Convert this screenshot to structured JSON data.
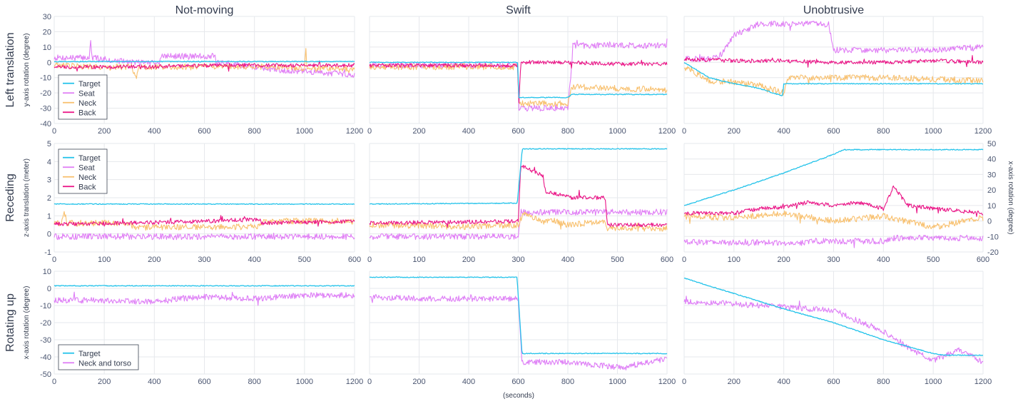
{
  "figure": {
    "column_titles": [
      "Not-moving",
      "Swift",
      "Unobtrusive"
    ],
    "row_titles": [
      "Left translation",
      "Receding",
      "Rotating up"
    ],
    "xlabel": "(seconds)",
    "colors": {
      "Target": "#25c3ea",
      "Seat": "#e07ef5",
      "Neck": "#f8c06e",
      "Back": "#ea1486",
      "Neck and torso": "#de7ef6"
    }
  },
  "chart_data": [
    {
      "type": "line",
      "row": 0,
      "col": 0,
      "column_title": "Not-moving",
      "row_title": "Left translation",
      "ylabel": "y-axis rotation (degree)",
      "xlim": [
        0,
        1200
      ],
      "ylim": [
        -40,
        30
      ],
      "xticks": [
        0,
        200,
        400,
        600,
        800,
        1000,
        1200
      ],
      "yticks": [
        -40,
        -30,
        -20,
        -10,
        0,
        10,
        20,
        30
      ],
      "legend": [
        "Target",
        "Seat",
        "Neck",
        "Back"
      ],
      "legend_position": "bottom-left",
      "series": [
        {
          "name": "Target",
          "x": [
            0,
            1200
          ],
          "y": [
            0.5,
            0.5
          ]
        },
        {
          "name": "Seat",
          "x": [
            0,
            140,
            145,
            150,
            300,
            420,
            425,
            640,
            645,
            900,
            1200
          ],
          "y": [
            3,
            3,
            15,
            3,
            0,
            0,
            4,
            4,
            0,
            -5,
            -8
          ]
        },
        {
          "name": "Neck",
          "x": [
            0,
            140,
            310,
            325,
            340,
            640,
            900,
            1000,
            1005,
            1010,
            1200
          ],
          "y": [
            -2,
            -3,
            -3,
            -11,
            -3,
            -3,
            -3,
            -4,
            10,
            -4,
            -4
          ]
        },
        {
          "name": "Back",
          "x": [
            0,
            200,
            400,
            600,
            800,
            1000,
            1200
          ],
          "y": [
            -3,
            -3,
            -3,
            -2,
            -2,
            -2,
            -2
          ]
        }
      ]
    },
    {
      "type": "line",
      "row": 0,
      "col": 1,
      "column_title": "Swift",
      "row_title": "Left translation",
      "xlim": [
        0,
        1200
      ],
      "ylim": [
        -40,
        30
      ],
      "xticks": [
        0,
        200,
        400,
        600,
        800,
        1000,
        1200
      ],
      "series": [
        {
          "name": "Target",
          "x": [
            0,
            598,
            602,
            800,
            815,
            1200
          ],
          "y": [
            0,
            0,
            -23,
            -23,
            -21,
            -21
          ]
        },
        {
          "name": "Seat",
          "x": [
            0,
            598,
            602,
            800,
            815,
            820,
            1200
          ],
          "y": [
            -2,
            -2,
            -30,
            -30,
            -2,
            11,
            11
          ]
        },
        {
          "name": "Neck",
          "x": [
            0,
            400,
            598,
            602,
            800,
            815,
            1000,
            1200
          ],
          "y": [
            -3,
            -3,
            -3,
            -27,
            -27,
            -16,
            -17,
            -18
          ]
        },
        {
          "name": "Back",
          "x": [
            0,
            598,
            602,
            610,
            800,
            1000,
            1200
          ],
          "y": [
            -2,
            -2,
            -30,
            0,
            0,
            -1,
            -1
          ]
        }
      ]
    },
    {
      "type": "line",
      "row": 0,
      "col": 2,
      "column_title": "Unobtrusive",
      "row_title": "Left translation",
      "xlim": [
        0,
        1200
      ],
      "ylim": [
        -40,
        30
      ],
      "xticks": [
        0,
        200,
        400,
        600,
        800,
        1000,
        1200
      ],
      "series": [
        {
          "name": "Target",
          "x": [
            0,
            100,
            200,
            300,
            395,
            400,
            1200
          ],
          "y": [
            0,
            -10,
            -14,
            -17,
            -22,
            -14,
            -14
          ]
        },
        {
          "name": "Seat",
          "x": [
            0,
            100,
            150,
            200,
            300,
            400,
            580,
            600,
            1000,
            1200
          ],
          "y": [
            2,
            2,
            5,
            18,
            25,
            25,
            25,
            8,
            8,
            10
          ]
        },
        {
          "name": "Neck",
          "x": [
            0,
            100,
            200,
            300,
            400,
            420,
            800,
            1200
          ],
          "y": [
            -3,
            -12,
            -13,
            -15,
            -20,
            -10,
            -10,
            -12
          ]
        },
        {
          "name": "Back",
          "x": [
            0,
            200,
            400,
            600,
            800,
            1000,
            1200
          ],
          "y": [
            2,
            1,
            1,
            0,
            0,
            1,
            0
          ]
        }
      ]
    },
    {
      "type": "line",
      "row": 1,
      "col": 0,
      "column_title": "Not-moving",
      "row_title": "Receding",
      "ylabel": "z-axis translation (meter)",
      "xlim": [
        0,
        600
      ],
      "ylim": [
        -1,
        5
      ],
      "xticks": [
        0,
        100,
        200,
        300,
        400,
        500,
        600
      ],
      "yticks": [
        -1,
        0,
        1,
        2,
        3,
        4,
        5
      ],
      "legend": [
        "Target",
        "Seat",
        "Neck",
        "Back"
      ],
      "legend_position": "top-left",
      "series": [
        {
          "name": "Target",
          "x": [
            0,
            600
          ],
          "y": [
            1.65,
            1.65
          ]
        },
        {
          "name": "Seat",
          "x": [
            0,
            600
          ],
          "y": [
            -0.15,
            -0.15
          ]
        },
        {
          "name": "Neck",
          "x": [
            0,
            15,
            20,
            25,
            150,
            160,
            410,
            420,
            600
          ],
          "y": [
            0.6,
            0.6,
            1.3,
            0.6,
            0.6,
            0.35,
            0.4,
            0.7,
            0.7
          ]
        },
        {
          "name": "Back",
          "x": [
            0,
            150,
            300,
            410,
            415,
            600
          ],
          "y": [
            0.55,
            0.6,
            0.7,
            0.8,
            0.6,
            0.7
          ]
        }
      ]
    },
    {
      "type": "line",
      "row": 1,
      "col": 1,
      "column_title": "Swift",
      "row_title": "Receding",
      "xlim": [
        0,
        600
      ],
      "ylim": [
        -1,
        5
      ],
      "xticks": [
        0,
        100,
        200,
        300,
        400,
        500,
        600
      ],
      "series": [
        {
          "name": "Target",
          "x": [
            0,
            298,
            308,
            600
          ],
          "y": [
            1.65,
            1.7,
            4.7,
            4.7
          ]
        },
        {
          "name": "Seat",
          "x": [
            0,
            300,
            305,
            475,
            480,
            600
          ],
          "y": [
            -0.15,
            -0.15,
            1.2,
            1.2,
            1.2,
            1.2
          ]
        },
        {
          "name": "Neck",
          "x": [
            0,
            200,
            300,
            310,
            350,
            360,
            400,
            475,
            480,
            600
          ],
          "y": [
            0.5,
            0.4,
            0.5,
            1.2,
            0.6,
            0.8,
            0.5,
            0.7,
            0.3,
            0.3
          ]
        },
        {
          "name": "Back",
          "x": [
            0,
            300,
            305,
            350,
            355,
            400,
            405,
            475,
            480,
            600
          ],
          "y": [
            0.6,
            0.7,
            3.8,
            3.2,
            2.3,
            2.1,
            2.0,
            2.0,
            0.5,
            0.5
          ]
        }
      ]
    },
    {
      "type": "line",
      "row": 1,
      "col": 2,
      "column_title": "Unobtrusive",
      "row_title": "Receding",
      "ylabel_right": "x-axis rotation (degree)",
      "xlim": [
        0,
        600
      ],
      "ylim": [
        -20,
        50
      ],
      "xticks": [
        0,
        100,
        200,
        300,
        400,
        500,
        600
      ],
      "yticks": [
        -20,
        -10,
        0,
        10,
        20,
        30,
        40,
        50
      ],
      "series": [
        {
          "name": "Target",
          "x": [
            0,
            100,
            200,
            250,
            300,
            320,
            600
          ],
          "y": [
            10,
            20,
            31,
            37,
            43,
            46,
            46
          ]
        },
        {
          "name": "Seat",
          "x": [
            0,
            50,
            100,
            250,
            260,
            400,
            420,
            600
          ],
          "y": [
            -13,
            -14,
            -14,
            -14,
            -13,
            -13,
            -11,
            -11
          ]
        },
        {
          "name": "Neck",
          "x": [
            0,
            100,
            200,
            300,
            400,
            500,
            600
          ],
          "y": [
            3,
            2,
            5,
            0,
            3,
            -4,
            2
          ]
        },
        {
          "name": "Back",
          "x": [
            0,
            100,
            150,
            200,
            250,
            300,
            350,
            400,
            420,
            450,
            500,
            600
          ],
          "y": [
            5,
            5,
            8,
            9,
            12,
            10,
            12,
            8,
            22,
            10,
            8,
            5
          ]
        }
      ]
    },
    {
      "type": "line",
      "row": 2,
      "col": 0,
      "column_title": "Not-moving",
      "row_title": "Rotating up",
      "ylabel": "x-axis rotation (degree)",
      "xlim": [
        0,
        1200
      ],
      "ylim": [
        -50,
        10
      ],
      "xticks": [
        0,
        200,
        400,
        600,
        800,
        1000,
        1200
      ],
      "yticks": [
        -50,
        -40,
        -30,
        -20,
        -10,
        0,
        10
      ],
      "legend": [
        "Target",
        "Neck and torso"
      ],
      "legend_position": "bottom-left",
      "series": [
        {
          "name": "Target",
          "x": [
            0,
            1200
          ],
          "y": [
            1.5,
            1.5
          ]
        },
        {
          "name": "Neck and torso",
          "x": [
            0,
            200,
            400,
            500,
            600,
            800,
            1000,
            1200
          ],
          "y": [
            -7,
            -7,
            -8,
            -6,
            -5,
            -6,
            -4,
            -4
          ]
        }
      ]
    },
    {
      "type": "line",
      "row": 2,
      "col": 1,
      "column_title": "Swift",
      "row_title": "Rotating up",
      "xlim": [
        0,
        1200
      ],
      "ylim": [
        -50,
        10
      ],
      "xticks": [
        0,
        200,
        400,
        600,
        800,
        1000,
        1200
      ],
      "series": [
        {
          "name": "Target",
          "x": [
            0,
            595,
            615,
            1200
          ],
          "y": [
            6.5,
            6.5,
            -38,
            -38
          ]
        },
        {
          "name": "Neck and torso",
          "x": [
            0,
            200,
            400,
            600,
            615,
            800,
            1000,
            1100,
            1200
          ],
          "y": [
            -5,
            -6,
            -6,
            -6,
            -43,
            -43,
            -46,
            -44,
            -41
          ]
        }
      ]
    },
    {
      "type": "line",
      "row": 2,
      "col": 2,
      "column_title": "Unobtrusive",
      "row_title": "Rotating up",
      "xlim": [
        0,
        1200
      ],
      "ylim": [
        -50,
        10
      ],
      "xticks": [
        0,
        200,
        400,
        600,
        800,
        1000,
        1200
      ],
      "series": [
        {
          "name": "Target",
          "x": [
            0,
            200,
            400,
            600,
            800,
            1000,
            1040,
            1200
          ],
          "y": [
            6,
            -3,
            -12,
            -20,
            -30,
            -38,
            -39,
            -39
          ]
        },
        {
          "name": "Neck and torso",
          "x": [
            0,
            200,
            400,
            600,
            800,
            900,
            1000,
            1100,
            1200
          ],
          "y": [
            -8,
            -9,
            -11,
            -13,
            -25,
            -35,
            -42,
            -36,
            -43
          ]
        }
      ]
    }
  ]
}
